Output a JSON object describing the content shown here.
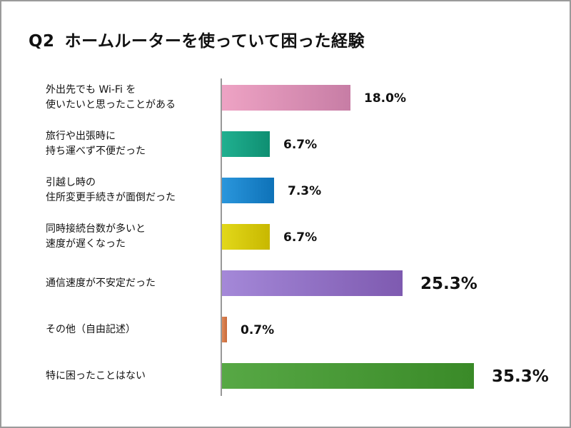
{
  "title": {
    "number": "Q2",
    "text": "ホームルーターを使っていて困った経験"
  },
  "chart_data": {
    "type": "bar",
    "orientation": "horizontal",
    "title": "Q2 ホームルーターを使っていて困った経験",
    "categories": [
      [
        "外出先でも Wi-Fi を",
        "使いたいと思ったことがある"
      ],
      [
        "旅行や出張時に",
        "持ち運べず不便だった"
      ],
      [
        "引越し時の",
        "住所変更手続きが面倒だった"
      ],
      [
        "同時接続台数が多いと",
        "速度が遅くなった"
      ],
      [
        "通信速度が不安定だった"
      ],
      [
        "その他（自由記述）"
      ],
      [
        "特に困ったことはない"
      ]
    ],
    "values": [
      18.0,
      6.7,
      7.3,
      6.7,
      25.3,
      0.7,
      35.3
    ],
    "data_labels": [
      "18.0%",
      "6.7%",
      "7.3%",
      "6.7%",
      "25.3%",
      "0.7%",
      "35.3%"
    ],
    "colors": [
      [
        "#eea3c4",
        "#c77da5"
      ],
      [
        "#20b090",
        "#0f8f72"
      ],
      [
        "#2a96dc",
        "#0e72b8"
      ],
      [
        "#e2d81a",
        "#c8b800"
      ],
      [
        "#a488d8",
        "#7e5ab0"
      ],
      [
        "#e08a5a",
        "#c86a3a"
      ],
      [
        "#57a845",
        "#3a8a28"
      ]
    ],
    "xlabel": "",
    "ylabel": "",
    "grid": false
  }
}
